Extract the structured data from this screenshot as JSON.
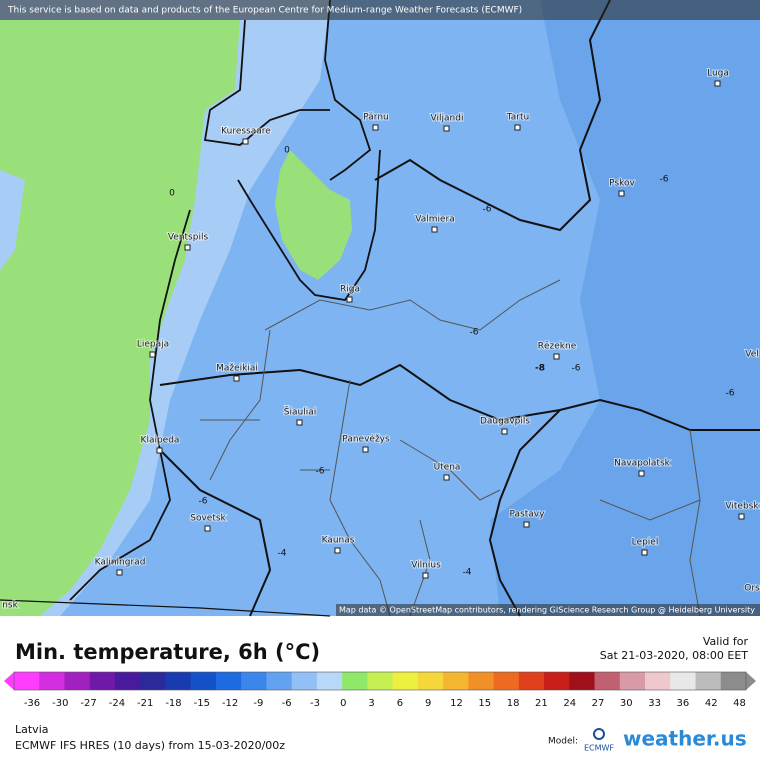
{
  "attribution_top": "This service is based on data and products of the European Centre for Medium-range Weather Forecasts (ECMWF)",
  "map_credit": "Map data © OpenStreetMap contributors, rendering GIScience Research Group @ Heidelberg University",
  "cities": [
    "Luga",
    "Pärnu",
    "Viljandi",
    "Tartu",
    "Kuressaare",
    "Pskov",
    "Valmiera",
    "Ventspils",
    "Riga",
    "Liepaja",
    "Rēzekne",
    "Mažeikiai",
    "Šiauliai",
    "Daugavpils",
    "Klaipeda",
    "Panevėžys",
    "Navapolatsk",
    "Utena",
    "Vitebsk",
    "Sovetsk",
    "Pastavy",
    "Kaunas",
    "Lepiel",
    "Kaliningrad",
    "Vilnius",
    "Vel",
    "Ors",
    "nsk"
  ],
  "contour_labels": [
    0,
    0,
    -6,
    -6,
    -6,
    -6,
    -6,
    -6,
    -6,
    -4,
    -4,
    -8
  ],
  "title": "Min. temperature, 6h (°C)",
  "valid_label": "Valid for",
  "valid_time": "Sat 21-03-2020, 08:00 EET",
  "scale_ticks": [
    -36,
    -30,
    -27,
    -24,
    -21,
    -18,
    -15,
    -12,
    -9,
    -6,
    -3,
    0,
    3,
    6,
    9,
    12,
    15,
    18,
    21,
    24,
    27,
    30,
    33,
    36,
    42,
    48
  ],
  "scale_colors": [
    "#ff3cff",
    "#d22ee0",
    "#a21fc0",
    "#7018a8",
    "#4a1a9c",
    "#2a2a9a",
    "#1a3bb0",
    "#1450c8",
    "#1e6ae0",
    "#3a86ea",
    "#62a2f0",
    "#92c0f5",
    "#b8d8f8",
    "#8ee86a",
    "#c6f052",
    "#eef040",
    "#f4d83a",
    "#f4b630",
    "#f29028",
    "#ec6a22",
    "#e0401c",
    "#c81e18",
    "#a0101a",
    "#c06070",
    "#d89aa6",
    "#eec8cc",
    "#e8e8e8",
    "#bcbcbc",
    "#8c8c8c"
  ],
  "region": "Latvia",
  "model_run": "ECMWF IFS HRES (10 days) from 15-03-2020/00z",
  "model_label": "Model:",
  "model_logo": "ECMWF",
  "brand": "weather.us"
}
